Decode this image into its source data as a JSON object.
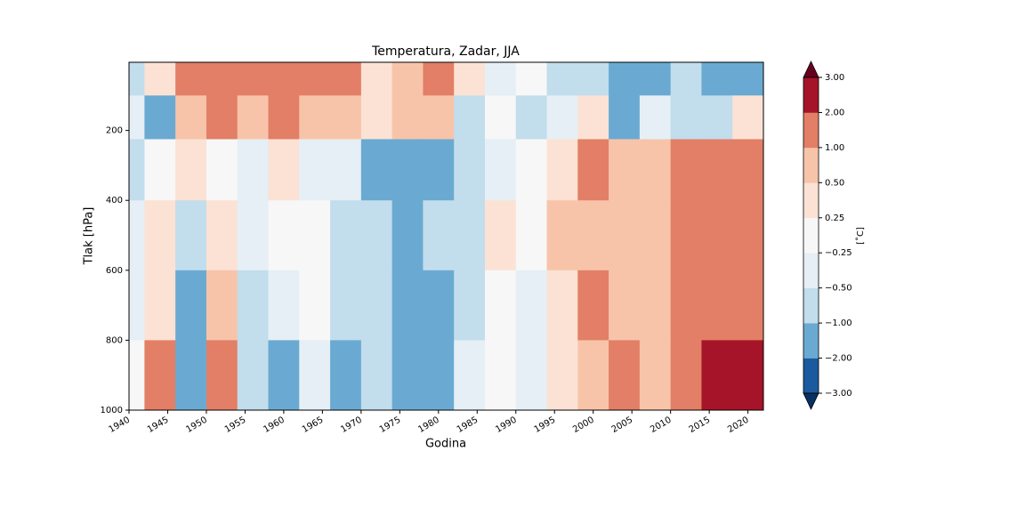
{
  "chart_data": {
    "type": "contourf",
    "title": "Temperatura, Zadar, JJA",
    "xlabel": "Godina",
    "ylabel": "Tlak [hPa]",
    "x": [
      1940,
      1944,
      1948,
      1952,
      1956,
      1960,
      1964,
      1968,
      1972,
      1976,
      1980,
      1984,
      1988,
      1992,
      1996,
      2000,
      2004,
      2008,
      2012,
      2016,
      2020
    ],
    "y": [
      50,
      150,
      300,
      500,
      700,
      900
    ],
    "z": [
      [
        -0.7,
        0.3,
        1.2,
        1.5,
        1.2,
        1.3,
        1.2,
        1.0,
        0.4,
        0.7,
        1.2,
        0.3,
        -0.4,
        -0.2,
        -0.6,
        -0.8,
        -1.2,
        -1.2,
        -0.8,
        -1.2,
        -1.3
      ],
      [
        -0.3,
        -1.2,
        0.6,
        1.2,
        0.5,
        1.0,
        0.6,
        0.7,
        0.3,
        0.6,
        0.7,
        -0.6,
        0.2,
        -0.8,
        -0.5,
        0.3,
        -1.3,
        -0.4,
        -0.6,
        -0.8,
        0.4
      ],
      [
        -0.6,
        0.1,
        0.3,
        0.0,
        -0.3,
        0.4,
        -0.3,
        -0.4,
        -1.1,
        -1.5,
        -1.2,
        -0.6,
        -0.3,
        0.1,
        0.4,
        1.1,
        0.6,
        0.8,
        1.2,
        1.4,
        1.3
      ],
      [
        -0.3,
        0.3,
        -0.6,
        0.4,
        -0.3,
        0.2,
        0.1,
        -0.6,
        -1.0,
        -1.4,
        -0.8,
        -0.7,
        0.3,
        -0.2,
        0.6,
        0.8,
        0.7,
        0.6,
        1.2,
        1.3,
        1.4
      ],
      [
        -0.3,
        0.3,
        -1.2,
        0.7,
        -0.6,
        -0.3,
        -0.2,
        -0.7,
        -0.9,
        -1.6,
        -1.1,
        -0.6,
        0.0,
        -0.4,
        0.4,
        1.0,
        0.6,
        0.7,
        1.1,
        1.8,
        1.5
      ],
      [
        0.1,
        1.2,
        -1.3,
        1.3,
        -0.6,
        -1.1,
        -0.4,
        -1.2,
        -0.8,
        -1.8,
        -1.2,
        -0.5,
        0.1,
        -0.5,
        0.3,
        0.8,
        1.5,
        0.6,
        1.5,
        2.2,
        2.3
      ]
    ],
    "xlim": [
      1940,
      2022
    ],
    "ylim": [
      1000,
      5
    ],
    "xticks": [
      1940,
      1945,
      1950,
      1955,
      1960,
      1965,
      1970,
      1975,
      1980,
      1985,
      1990,
      1995,
      2000,
      2005,
      2010,
      2015,
      2020
    ],
    "yticks": [
      200,
      400,
      600,
      800,
      1000
    ],
    "levels": [
      {
        "value": -3,
        "label": "−3.00"
      },
      {
        "value": -2,
        "label": "−2.00"
      },
      {
        "value": -1,
        "label": "−1.00"
      },
      {
        "value": -0.5,
        "label": "−0.50"
      },
      {
        "value": -0.25,
        "label": "−0.25"
      },
      {
        "value": 0.25,
        "label": "0.25"
      },
      {
        "value": 0.5,
        "label": "0.50"
      },
      {
        "value": 1,
        "label": "1.00"
      },
      {
        "value": 2,
        "label": "2.00"
      },
      {
        "value": 3,
        "label": "3.00"
      }
    ],
    "colors": [
      "#1b5a9e",
      "#6aaad2",
      "#c2ddec",
      "#e5eff5",
      "#f7f7f7",
      "#fbe2d4",
      "#f7c4aa",
      "#e27f66",
      "#a61429"
    ],
    "under_color": "#093063",
    "over_color": "#67001f",
    "colorbar_label": "[˚C]"
  }
}
